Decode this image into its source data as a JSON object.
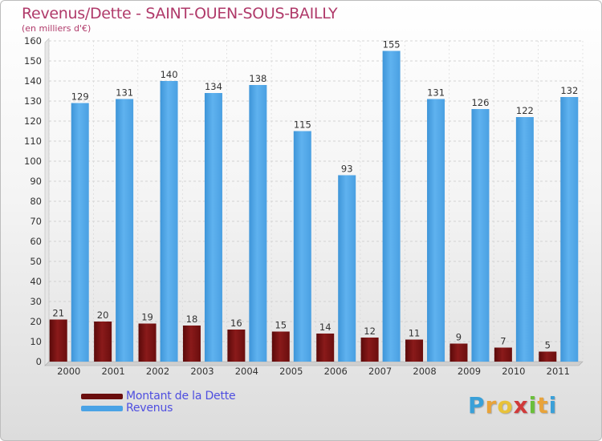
{
  "header": {
    "title": "Revenus/Dette - SAINT-OUEN-SOUS-BAILLY",
    "subtitle": "(en milliers d'€)"
  },
  "legend": {
    "debt_label": "Montant de la Dette",
    "revenue_label": "Revenus"
  },
  "logo": {
    "text": "Proxiti",
    "letters": [
      "P",
      "r",
      "o",
      "x",
      "i",
      "t",
      "i"
    ],
    "colors": [
      "#3aa0d8",
      "#e8a33a",
      "#e8c23a",
      "#d03a3a",
      "#6abf3a",
      "#e8a33a",
      "#3aa0d8"
    ]
  },
  "colors": {
    "debt": "#7a1010",
    "revenue": "#4aa3e6",
    "title": "#b03a6a",
    "legend_text": "#4e4ee0"
  },
  "chart_data": {
    "type": "bar",
    "categories": [
      "2000",
      "2001",
      "2002",
      "2003",
      "2004",
      "2005",
      "2006",
      "2007",
      "2008",
      "2009",
      "2010",
      "2011"
    ],
    "series": [
      {
        "name": "Montant de la Dette",
        "values": [
          21,
          20,
          19,
          18,
          16,
          15,
          14,
          12,
          11,
          9,
          7,
          5
        ]
      },
      {
        "name": "Revenus",
        "values": [
          129,
          131,
          140,
          134,
          138,
          115,
          93,
          155,
          131,
          126,
          122,
          132
        ]
      }
    ],
    "title": "Revenus/Dette - SAINT-OUEN-SOUS-BAILLY",
    "subtitle": "(en milliers d'€)",
    "ylim": [
      0,
      160
    ],
    "yticks": [
      0,
      10,
      20,
      30,
      40,
      50,
      60,
      70,
      80,
      90,
      100,
      110,
      120,
      130,
      140,
      150,
      160
    ],
    "grid": true,
    "legend_position": "bottom-left"
  }
}
